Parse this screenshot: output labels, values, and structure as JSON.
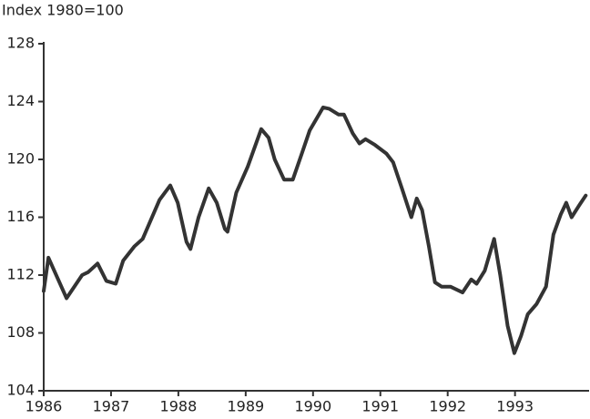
{
  "chart_data": {
    "type": "line",
    "title": "Index 1980=100",
    "x": [
      1986.0,
      1986.07,
      1986.34,
      1986.57,
      1986.66,
      1986.8,
      1986.93,
      1987.07,
      1987.18,
      1987.35,
      1987.47,
      1987.72,
      1987.88,
      1987.99,
      1988.12,
      1988.18,
      1988.3,
      1988.45,
      1988.57,
      1988.69,
      1988.73,
      1988.86,
      1989.03,
      1989.23,
      1989.34,
      1989.43,
      1989.57,
      1989.7,
      1989.84,
      1989.95,
      1990.15,
      1990.24,
      1990.38,
      1990.46,
      1990.59,
      1990.69,
      1990.78,
      1990.92,
      1991.09,
      1991.19,
      1991.32,
      1991.46,
      1991.54,
      1991.62,
      1991.72,
      1991.81,
      1991.91,
      1992.04,
      1992.22,
      1992.35,
      1992.43,
      1992.55,
      1992.69,
      1992.78,
      1992.89,
      1992.99,
      1993.09,
      1993.19,
      1993.32,
      1993.46,
      1993.57,
      1993.68,
      1993.76,
      1993.84,
      1993.95,
      1994.05
    ],
    "series": [
      {
        "name": "Index",
        "color": "#333333",
        "values": [
          110.9,
          113.2,
          110.4,
          112.0,
          112.2,
          112.8,
          111.6,
          111.4,
          113.0,
          114.0,
          114.5,
          117.2,
          118.2,
          117.0,
          114.3,
          113.8,
          116.0,
          118.0,
          117.0,
          115.2,
          115.0,
          117.7,
          119.5,
          122.1,
          121.5,
          120.0,
          118.6,
          118.6,
          120.5,
          122.0,
          123.6,
          123.5,
          123.1,
          123.1,
          121.8,
          121.1,
          121.4,
          121.0,
          120.4,
          119.8,
          118.0,
          116.0,
          117.3,
          116.5,
          114.0,
          111.5,
          111.2,
          111.2,
          110.8,
          111.7,
          111.4,
          112.3,
          114.5,
          112.0,
          108.5,
          106.6,
          107.8,
          109.3,
          110.0,
          111.2,
          114.8,
          116.2,
          117.0,
          116.0,
          116.8,
          117.5
        ]
      }
    ],
    "xlim": [
      1986,
      1994.1
    ],
    "xticks": [
      1986,
      1987,
      1988,
      1989,
      1990,
      1991,
      1992,
      1993
    ],
    "ylim": [
      104,
      128
    ],
    "yticks": [
      104,
      108,
      112,
      116,
      120,
      124,
      128
    ]
  }
}
